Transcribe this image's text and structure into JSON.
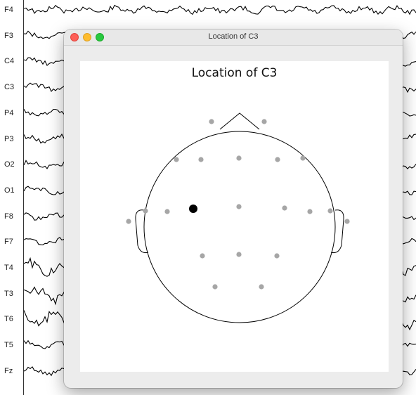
{
  "channels": [
    "F4",
    "F3",
    "C4",
    "C3",
    "P4",
    "P3",
    "O2",
    "O1",
    "F8",
    "F7",
    "T4",
    "T3",
    "T6",
    "T5",
    "Fz"
  ],
  "window": {
    "title": "Location of C3",
    "buttons": [
      "close",
      "minimize",
      "zoom"
    ]
  },
  "plot": {
    "title": "Location of C3",
    "highlighted_electrode": "C3",
    "highlight_color": "#000000",
    "electrode_color": "#a6a6a6"
  },
  "colors": {
    "close": "#fe5f57",
    "minimize": "#febc2e",
    "zoom": "#28c840",
    "trace": "#000000"
  }
}
